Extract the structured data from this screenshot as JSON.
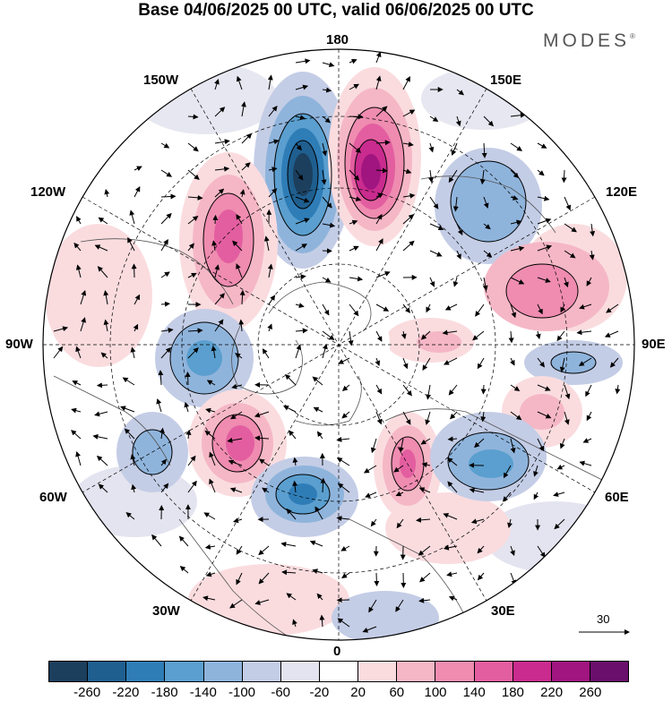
{
  "title": "Base 04/06/2025 00 UTC, valid 06/06/2025 00 UTC",
  "brand": "MODES",
  "brand_mark": "®",
  "lon_labels": {
    "top": "180",
    "bottom": "0",
    "left": "90W",
    "right": "90E",
    "nw1": "150W",
    "nw2": "120W",
    "ne1": "150E",
    "ne2": "120E",
    "sw1": "60W",
    "sw2": "30W",
    "se1": "60E",
    "se2": "30E"
  },
  "reference_vector": {
    "label": "30"
  },
  "colorbar": {
    "colors": [
      "#1c3f5e",
      "#1f5f8f",
      "#2f7db7",
      "#5a9fcf",
      "#8fb4dc",
      "#c4cde6",
      "#e4e4f0",
      "#ffffff",
      "#fadcdf",
      "#f5b7c6",
      "#ef8cb0",
      "#e35ea0",
      "#c92b8e",
      "#a0157f",
      "#6a0f6b"
    ],
    "ticks": [
      "-260",
      "-220",
      "-180",
      "-140",
      "-100",
      "-60",
      "-20",
      "20",
      "60",
      "100",
      "140",
      "180",
      "220",
      "260"
    ]
  }
}
